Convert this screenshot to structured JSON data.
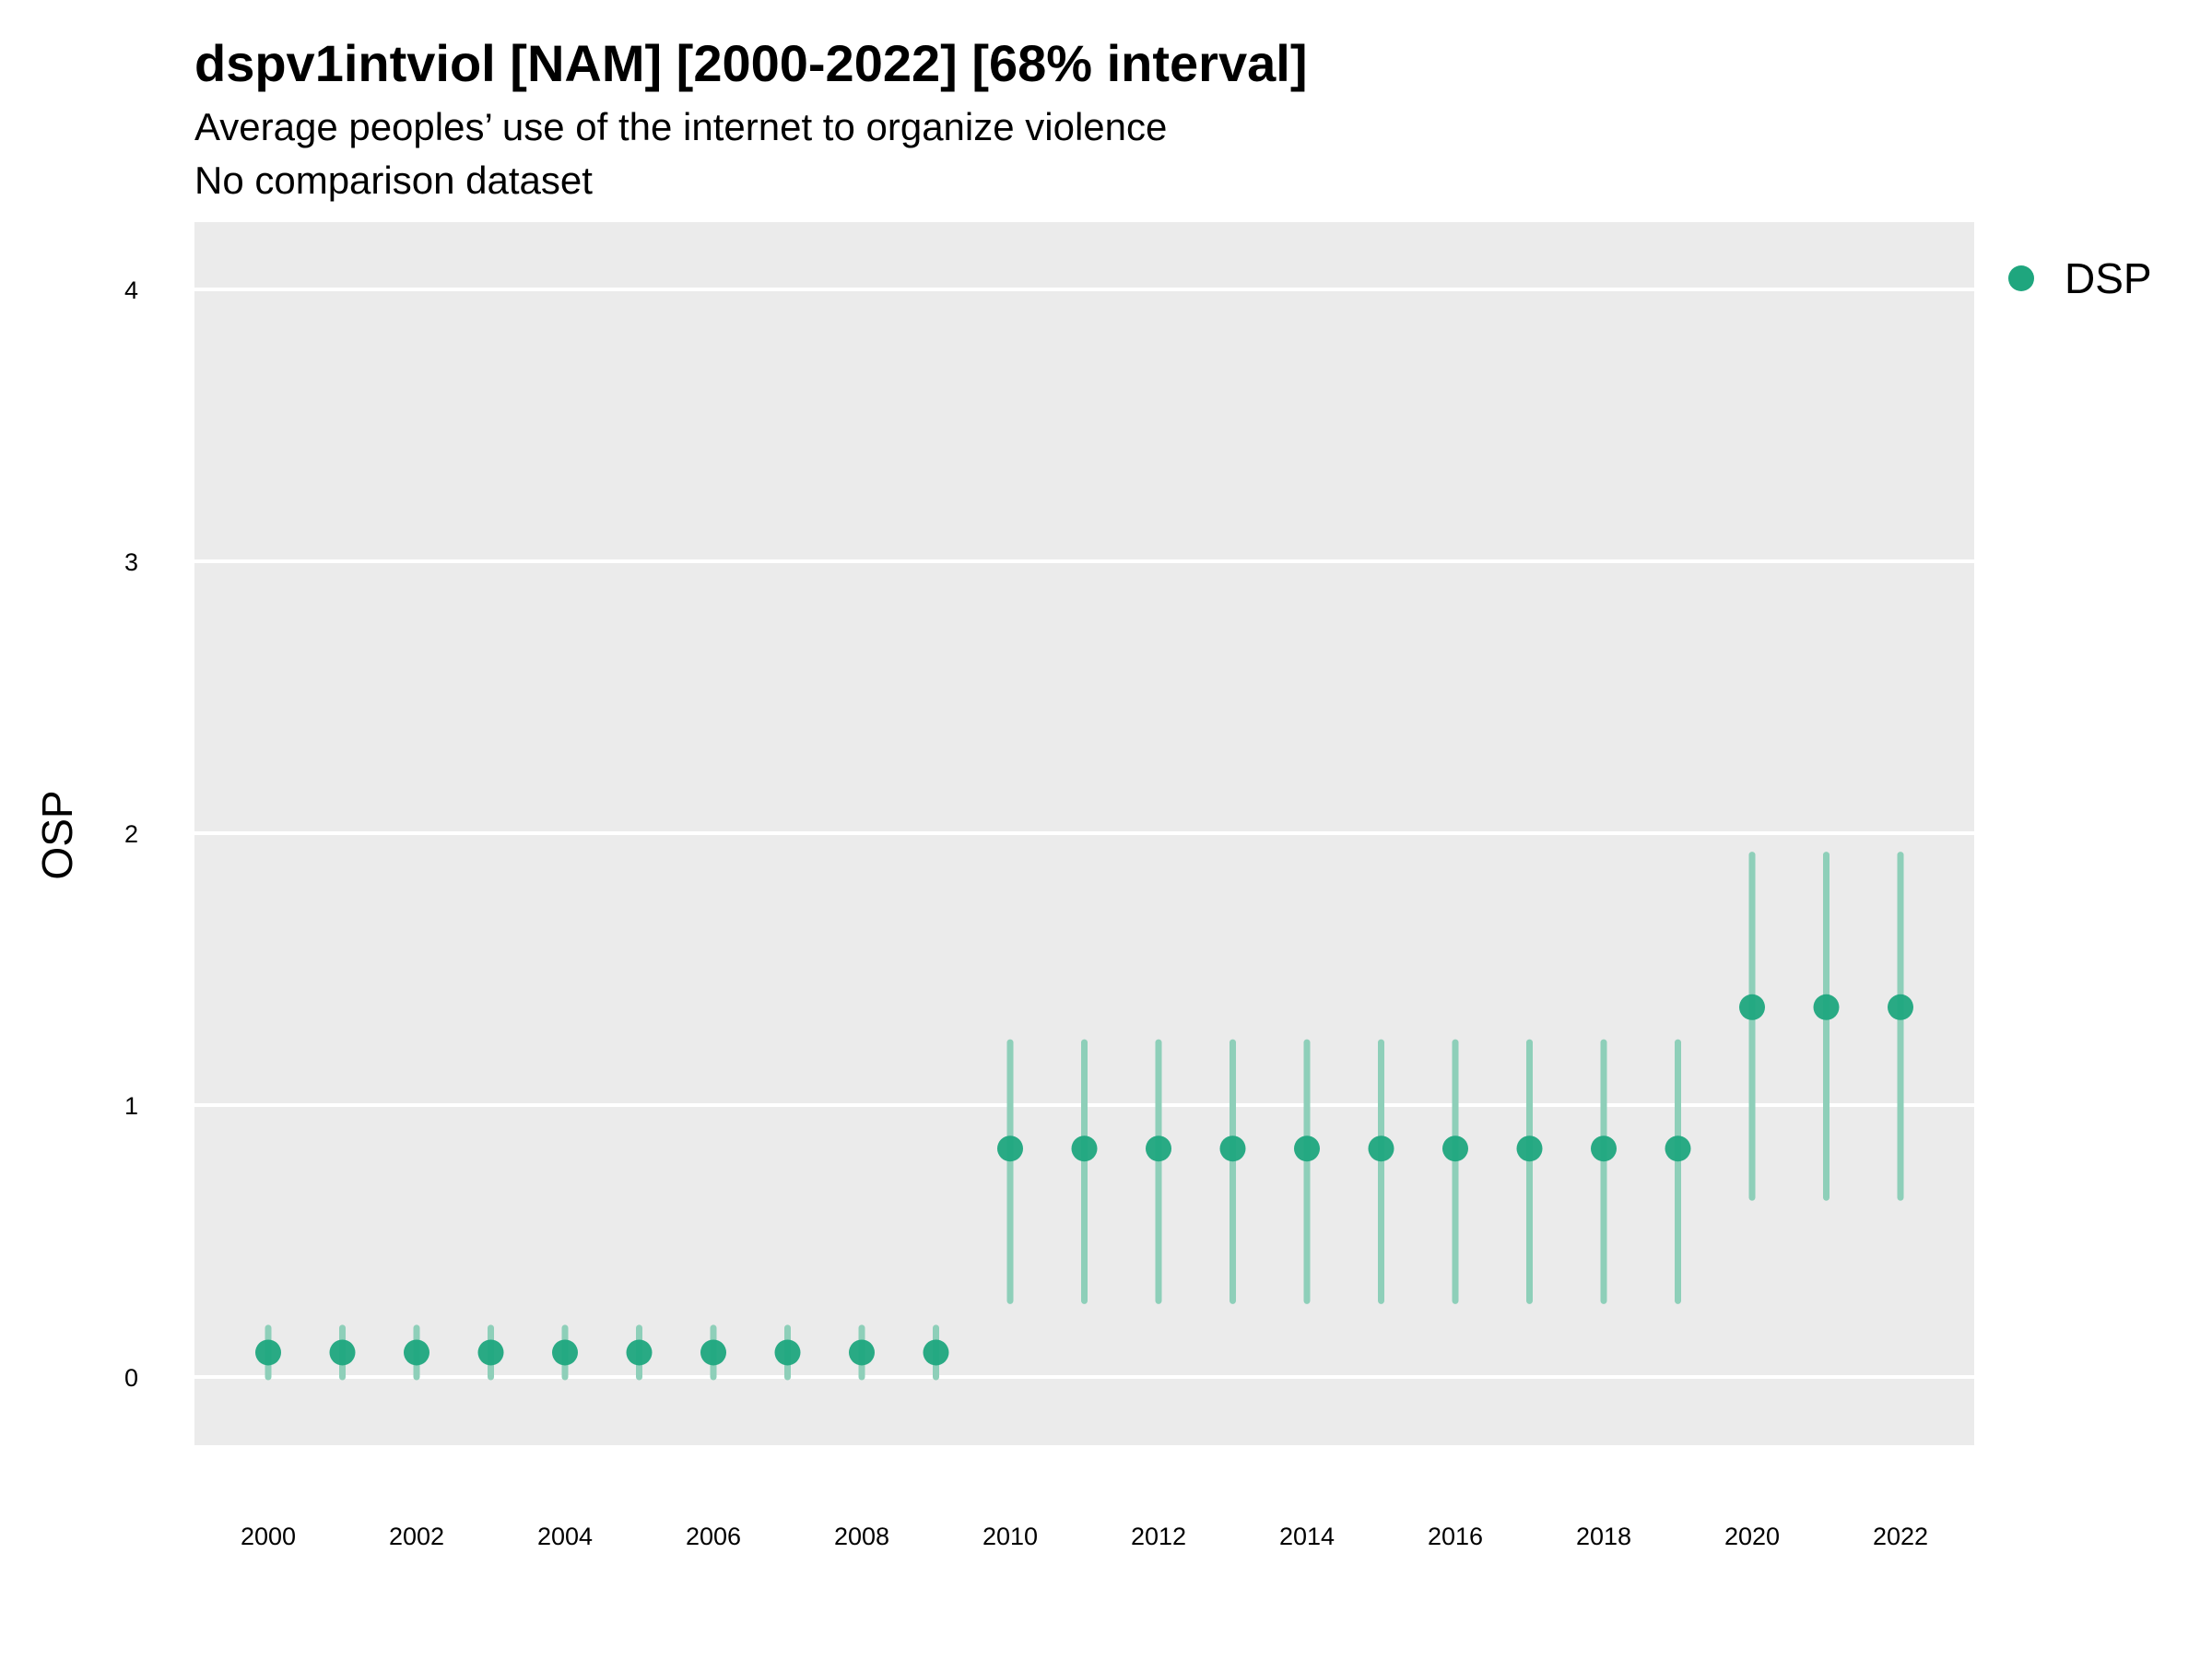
{
  "chart_data": {
    "type": "scatter",
    "title": "dspv1intviol [NAM] [2000-2022] [68% interval]",
    "subtitle": "Average peoples’ use of the internet to organize violence",
    "subtitle2": "No comparison dataset",
    "xlabel": "",
    "ylabel": "OSP",
    "ylim": [
      -0.25,
      4.25
    ],
    "yticks": [
      0,
      1,
      2,
      3,
      4
    ],
    "xlim": [
      1999,
      2023
    ],
    "xticks": [
      2000,
      2002,
      2004,
      2006,
      2008,
      2010,
      2012,
      2014,
      2016,
      2018,
      2020,
      2022
    ],
    "grid": true,
    "legend_position": "right",
    "series": [
      {
        "name": "DSP",
        "color": "#1fa67e",
        "points": [
          {
            "x": 2000,
            "y": 0.09,
            "lower": 0.0,
            "upper": 0.18
          },
          {
            "x": 2001,
            "y": 0.09,
            "lower": 0.0,
            "upper": 0.18
          },
          {
            "x": 2002,
            "y": 0.09,
            "lower": 0.0,
            "upper": 0.18
          },
          {
            "x": 2003,
            "y": 0.09,
            "lower": 0.0,
            "upper": 0.18
          },
          {
            "x": 2004,
            "y": 0.09,
            "lower": 0.0,
            "upper": 0.18
          },
          {
            "x": 2005,
            "y": 0.09,
            "lower": 0.0,
            "upper": 0.18
          },
          {
            "x": 2006,
            "y": 0.09,
            "lower": 0.0,
            "upper": 0.18
          },
          {
            "x": 2007,
            "y": 0.09,
            "lower": 0.0,
            "upper": 0.18
          },
          {
            "x": 2008,
            "y": 0.09,
            "lower": 0.0,
            "upper": 0.18
          },
          {
            "x": 2009,
            "y": 0.09,
            "lower": 0.0,
            "upper": 0.18
          },
          {
            "x": 2010,
            "y": 0.84,
            "lower": 0.28,
            "upper": 1.23
          },
          {
            "x": 2011,
            "y": 0.84,
            "lower": 0.28,
            "upper": 1.23
          },
          {
            "x": 2012,
            "y": 0.84,
            "lower": 0.28,
            "upper": 1.23
          },
          {
            "x": 2013,
            "y": 0.84,
            "lower": 0.28,
            "upper": 1.23
          },
          {
            "x": 2014,
            "y": 0.84,
            "lower": 0.28,
            "upper": 1.23
          },
          {
            "x": 2015,
            "y": 0.84,
            "lower": 0.28,
            "upper": 1.23
          },
          {
            "x": 2016,
            "y": 0.84,
            "lower": 0.28,
            "upper": 1.23
          },
          {
            "x": 2017,
            "y": 0.84,
            "lower": 0.28,
            "upper": 1.23
          },
          {
            "x": 2018,
            "y": 0.84,
            "lower": 0.28,
            "upper": 1.23
          },
          {
            "x": 2019,
            "y": 0.84,
            "lower": 0.28,
            "upper": 1.23
          },
          {
            "x": 2020,
            "y": 1.36,
            "lower": 0.66,
            "upper": 1.92
          },
          {
            "x": 2021,
            "y": 1.36,
            "lower": 0.66,
            "upper": 1.92
          },
          {
            "x": 2022,
            "y": 1.36,
            "lower": 0.66,
            "upper": 1.92
          }
        ]
      }
    ]
  },
  "colors": {
    "panel_background": "#ebebeb",
    "gridline": "#ffffff",
    "point": "#1fa67e",
    "interval": "#8ecfb9"
  }
}
